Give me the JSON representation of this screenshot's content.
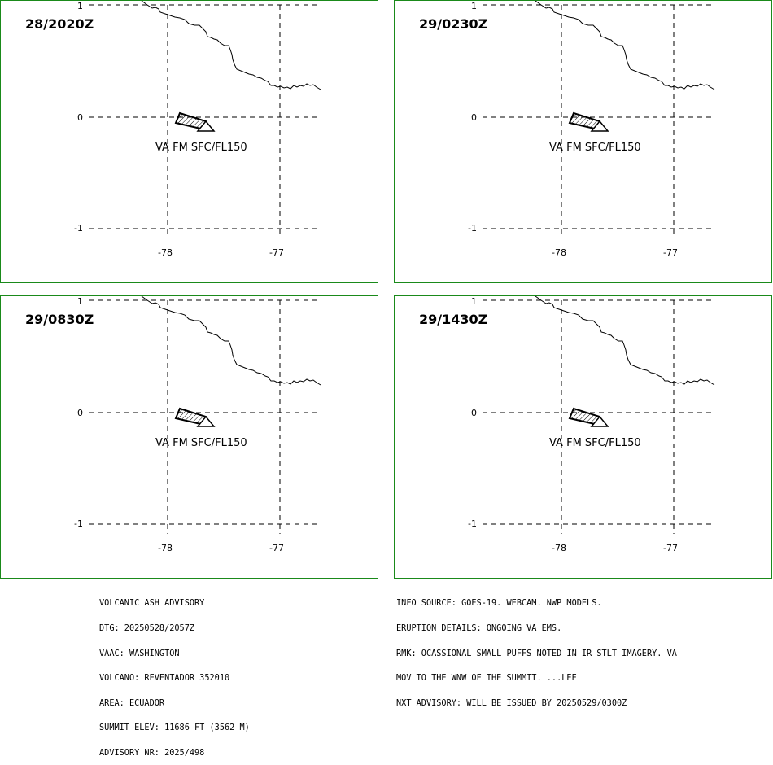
{
  "panels": [
    {
      "time": "28/2020Z"
    },
    {
      "time": "29/0230Z"
    },
    {
      "time": "29/0830Z"
    },
    {
      "time": "29/1430Z"
    }
  ],
  "map": {
    "lat_labels": [
      "1",
      "0",
      "-1"
    ],
    "lon_labels": [
      "-78",
      "-77"
    ],
    "ash_label": "VA FM SFC/FL150",
    "colors": {
      "border": "#1a8a1a",
      "lines": "#000000"
    }
  },
  "advisory_left": [
    "VOLCANIC ASH ADVISORY",
    "DTG: 20250528/2057Z",
    "VAAC: WASHINGTON",
    "VOLCANO: REVENTADOR 352010",
    "AREA: ECUADOR",
    "SUMMIT ELEV: 11686 FT (3562 M)",
    "ADVISORY NR: 2025/498"
  ],
  "advisory_right": [
    "INFO SOURCE: GOES-19. WEBCAM. NWP MODELS.",
    "ERUPTION DETAILS: ONGOING VA EMS.",
    "RMK: OCASSIONAL SMALL PUFFS NOTED IN IR STLT IMAGERY. VA",
    "MOV TO THE WNW OF THE SUMMIT. ...LEE",
    "NXT ADVISORY: WILL BE ISSUED BY 20250529/0300Z"
  ]
}
